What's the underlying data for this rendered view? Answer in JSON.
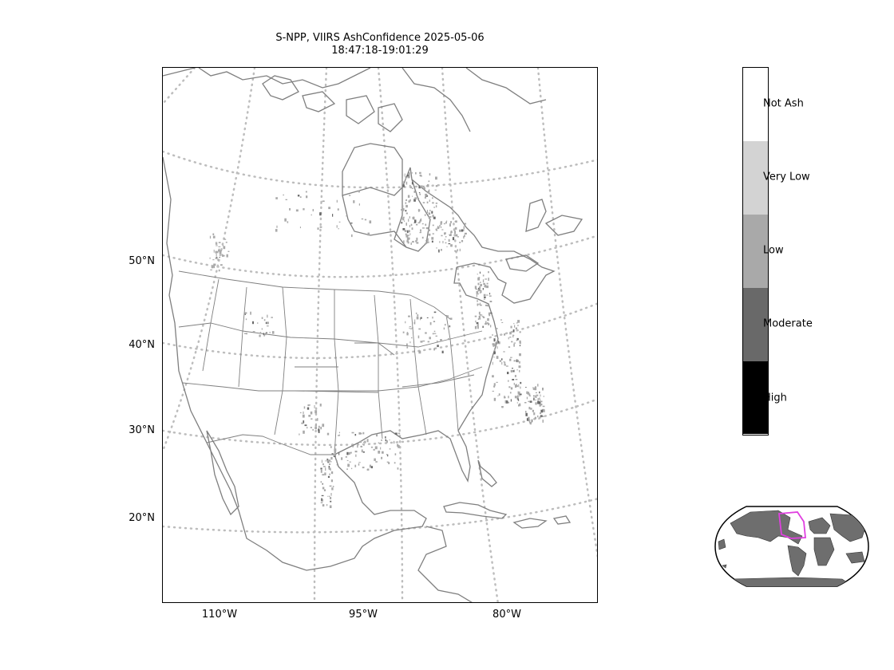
{
  "title": {
    "line1": "S-NPP, VIIRS AshConfidence 2025-05-06",
    "line2": "18:47:18-19:01:29"
  },
  "axes": {
    "lat_labels": [
      "50°N",
      "40°N",
      "30°N",
      "20°N"
    ],
    "lon_labels": [
      "110°W",
      "95°W",
      "80°W"
    ]
  },
  "colorbar": {
    "categories": [
      {
        "label": "Not Ash",
        "color": "#ffffff"
      },
      {
        "label": "Very Low",
        "color": "#d3d3d3"
      },
      {
        "label": "Low",
        "color": "#a9a9a9"
      },
      {
        "label": "Moderate",
        "color": "#696969"
      },
      {
        "label": "High",
        "color": "#000000"
      }
    ]
  },
  "colors": {
    "coastline": "#7f7f7f",
    "graticule": "#bdbdbd",
    "ash_pixels": "#a9a9a9",
    "overview_box": "#e040e0",
    "overview_land": "#6e6e6e"
  },
  "icons": {
    "overview": "globe-overview-icon"
  }
}
